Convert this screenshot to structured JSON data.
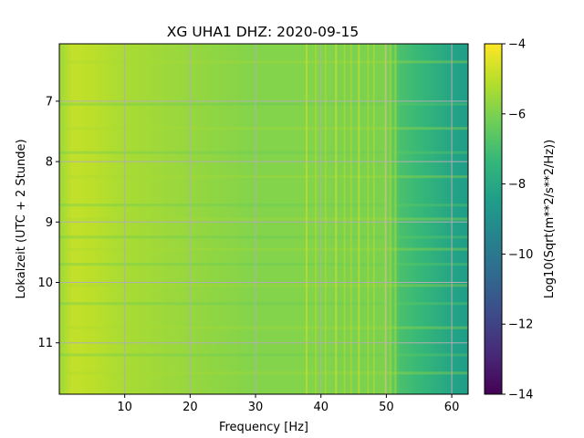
{
  "chart_data": {
    "type": "heatmap",
    "title": "XG UHA1  DHZ: 2020-09-15",
    "xlabel": "Frequency [Hz]",
    "ylabel": "Lokalzeit (UTC + 2 Stunde)",
    "colorbar_label": "Log10(Sqrt(m**2/s**2/Hz))",
    "xlim": [
      0,
      62.5
    ],
    "ylim": [
      11.85,
      6.05
    ],
    "y_inverted": true,
    "x_ticks": [
      10,
      20,
      30,
      40,
      50,
      60
    ],
    "x_tick_labels": [
      "10",
      "20",
      "30",
      "40",
      "50",
      "60"
    ],
    "y_ticks": [
      7,
      8,
      9,
      10,
      11
    ],
    "y_tick_labels": [
      "7",
      "8",
      "9",
      "10",
      "11"
    ],
    "grid": true,
    "colormap": "viridis",
    "color_range": [
      -14,
      -4
    ],
    "colorbar_ticks": [
      -4,
      -6,
      -8,
      -10,
      -12,
      -14
    ],
    "colorbar_tick_labels": [
      "−4",
      "−6",
      "−8",
      "−10",
      "−12",
      "−14"
    ],
    "spectral_profile": {
      "frequency_hz": [
        0,
        2,
        5,
        10,
        20,
        30,
        40,
        45,
        50,
        52,
        55,
        58,
        60,
        62.5
      ],
      "log_amplitude": [
        -5.5,
        -4.9,
        -5.0,
        -5.3,
        -5.6,
        -5.9,
        -5.9,
        -6.0,
        -6.0,
        -6.9,
        -7.3,
        -7.8,
        -8.2,
        -8.5
      ]
    },
    "narrowband_lines_hz": [
      37.8,
      39.2,
      40.7,
      42.3,
      43.6,
      44.6,
      45.8,
      47.2,
      48.1,
      49.9,
      50.6,
      51.4
    ],
    "horizontal_bands_hour": [
      6.35,
      7.05,
      7.45,
      7.85,
      8.25,
      8.72,
      8.95,
      9.25,
      9.45,
      9.7,
      10.05,
      10.35,
      10.75,
      11.2,
      11.5
    ]
  },
  "colors": {
    "viridis": [
      "#440154",
      "#482878",
      "#3e4989",
      "#31688e",
      "#26828e",
      "#1f9e89",
      "#35b779",
      "#6ece58",
      "#b5de2b",
      "#fde725"
    ],
    "grid": "#b0b0b0"
  }
}
